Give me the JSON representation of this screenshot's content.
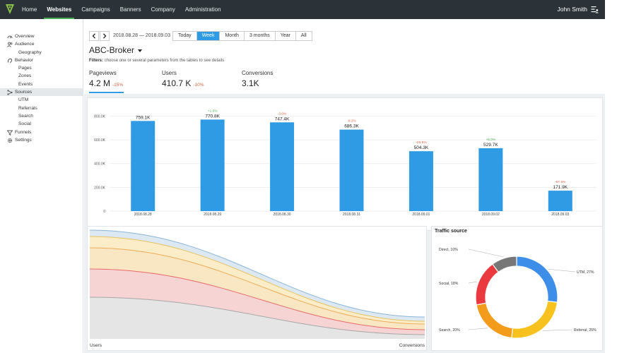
{
  "topnav": {
    "items": [
      {
        "label": "Home",
        "active": false
      },
      {
        "label": "Websites",
        "active": true
      },
      {
        "label": "Campaigns",
        "active": false
      },
      {
        "label": "Banners",
        "active": false
      },
      {
        "label": "Company",
        "active": false
      },
      {
        "label": "Administration",
        "active": false
      }
    ],
    "user": "John Smith"
  },
  "sidebar": {
    "items": [
      {
        "label": "Overview",
        "icon": "gauge-icon",
        "sub": false,
        "active": false
      },
      {
        "label": "Audience",
        "icon": "people-icon",
        "sub": false,
        "active": false
      },
      {
        "label": "Geography",
        "sub": true,
        "active": false
      },
      {
        "label": "Behavior",
        "icon": "behavior-icon",
        "sub": false,
        "active": false
      },
      {
        "label": "Pages",
        "sub": true,
        "active": false
      },
      {
        "label": "Zones",
        "sub": true,
        "active": false
      },
      {
        "label": "Events",
        "sub": true,
        "active": false
      },
      {
        "label": "Sources",
        "icon": "sources-icon",
        "sub": false,
        "active": true
      },
      {
        "label": "UTM",
        "sub": true,
        "active": false
      },
      {
        "label": "Referrals",
        "sub": true,
        "active": false
      },
      {
        "label": "Search",
        "sub": true,
        "active": false
      },
      {
        "label": "Social",
        "sub": true,
        "active": false
      },
      {
        "label": "Funnels",
        "icon": "funnel-icon",
        "sub": false,
        "active": false
      },
      {
        "label": "Settings",
        "icon": "gear-icon",
        "sub": false,
        "active": false
      }
    ]
  },
  "header": {
    "date_range": "2018.08.28 — 2018.09.03",
    "periods": [
      "Today",
      "Week",
      "Month",
      "3 months",
      "Year",
      "All"
    ],
    "active_period": "Week",
    "site": "ABC-Broker",
    "filters_label": "Filters:",
    "filters_text": "choose one or several parameters from the tables to see details"
  },
  "metrics": [
    {
      "label": "Pageviews",
      "value": "4.2 M",
      "delta": "-15%",
      "active": true
    },
    {
      "label": "Users",
      "value": "410.7 K",
      "delta": "-10%",
      "active": false
    },
    {
      "label": "Conversions",
      "value": "3.1K",
      "delta": "",
      "active": false
    }
  ],
  "chart_data": [
    {
      "type": "bar",
      "categories": [
        "2018.08.28",
        "2018.08.29",
        "2018.08.30",
        "2018.08.31",
        "2018.09.01",
        "2018.09.02",
        "2018.09.03"
      ],
      "values": [
        759.1,
        770.8,
        747.4,
        686.3,
        504.3,
        529.7,
        171.9
      ],
      "value_labels": [
        "759.1K",
        "770.8K",
        "747.4K",
        "686.3K",
        "504.3K",
        "529.7K",
        "171.9K"
      ],
      "change_labels": [
        "",
        "+1.5%",
        "-3.0%",
        "-8.2%",
        "-26.5%",
        "+5.0%",
        "-67.5%"
      ],
      "yticks": [
        0,
        200,
        400,
        600,
        800
      ],
      "ytick_labels": [
        "0",
        "200.0K",
        "400.0K",
        "600.0K",
        "800.0K"
      ],
      "ylim": [
        0,
        880
      ],
      "grid": true,
      "color": "#2f9be4",
      "positive_color": "#4caf50",
      "negative_color": "#d9603b"
    },
    {
      "type": "area",
      "xlabels": [
        "Users",
        "Conversions"
      ],
      "colors": [
        "#e5e5e5",
        "#f6d4d3",
        "#f9e6c2",
        "#fbedc8",
        "#dce9f3"
      ],
      "line_colors": [
        "#a7a7a7",
        "#e86a6a",
        "#eeaa55",
        "#e8c25d",
        "#8ab5d8"
      ]
    },
    {
      "type": "pie",
      "title": "Traffic source",
      "slices": [
        {
          "label": "UTM",
          "value": 27,
          "display": "UTM, 27%",
          "color": "#3d8ee8"
        },
        {
          "label": "Referral",
          "value": 25,
          "display": "Referral, 25%",
          "color": "#f7c21e"
        },
        {
          "label": "Search",
          "value": 20,
          "display": "Search, 20%",
          "color": "#f39c1b"
        },
        {
          "label": "Social",
          "value": 18,
          "display": "Social, 18%",
          "color": "#ea3a3f"
        },
        {
          "label": "Direct",
          "value": 10,
          "display": "Direct, 10%",
          "color": "#777777"
        }
      ]
    }
  ]
}
